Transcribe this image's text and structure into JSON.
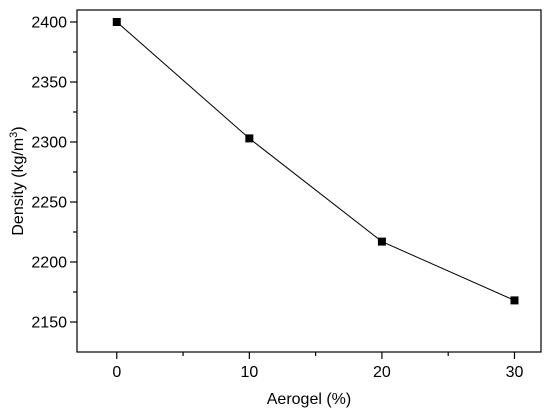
{
  "chart_data": {
    "type": "line",
    "title": "",
    "xlabel": "Aerogel (%)",
    "ylabel_main": "Density (kg/m",
    "ylabel_sup": "3",
    "ylabel_close": ")",
    "x": [
      0,
      10,
      20,
      30
    ],
    "y": [
      2400,
      2303,
      2217,
      2168
    ],
    "xlim": [
      -3,
      32
    ],
    "ylim": [
      2125,
      2410
    ],
    "x_ticks": [
      0,
      10,
      20,
      30
    ],
    "x_tick_labels": [
      "0",
      "10",
      "20",
      "30"
    ],
    "x_minor_ticks": [
      5,
      15,
      25
    ],
    "y_ticks": [
      2150,
      2200,
      2250,
      2300,
      2350,
      2400
    ],
    "y_tick_labels": [
      "2150",
      "2200",
      "2250",
      "2300",
      "2350",
      "2400"
    ],
    "y_minor_ticks": [
      2175,
      2225,
      2275,
      2325,
      2375
    ],
    "grid": false,
    "legend": "none",
    "line_color": "#000000",
    "marker": "square",
    "marker_color": "#000000"
  }
}
